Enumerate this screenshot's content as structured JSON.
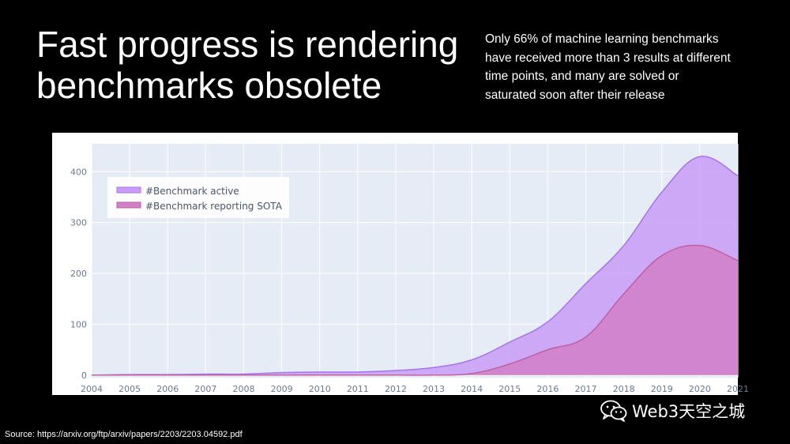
{
  "slide": {
    "title_lines": [
      "Fast progress is rendering",
      "benchmarks obsolete"
    ],
    "subtitle_lines": [
      "Only 66% of machine learning benchmarks",
      "have received more than 3 results at different",
      "time points, and many are solved or",
      "saturated soon after their release"
    ],
    "source": "Source: https://arxiv.org/ftp/arxiv/papers/2203/2203.04592.pdf",
    "watermark": "Web3天空之城"
  },
  "colors": {
    "plot_bg": "#e5ecf6",
    "active_fill": "#c89cf7",
    "active_line": "#a874ee",
    "sota_fill": "#d17fc8",
    "sota_line": "#c0609f",
    "grid": "#ffffff",
    "tick": "#6b7a8f"
  },
  "chart_data": {
    "type": "area",
    "title": "",
    "xlabel": "",
    "ylabel": "",
    "xlim": [
      2004,
      2021
    ],
    "ylim": [
      -5,
      455
    ],
    "x_ticks": [
      2004,
      2005,
      2006,
      2007,
      2008,
      2009,
      2010,
      2011,
      2012,
      2013,
      2014,
      2015,
      2016,
      2017,
      2018,
      2019,
      2020,
      2021
    ],
    "y_ticks": [
      0,
      100,
      200,
      300,
      400
    ],
    "grid": true,
    "legend_position": "top-left",
    "x": [
      2004,
      2005,
      2006,
      2007,
      2008,
      2009,
      2010,
      2011,
      2012,
      2013,
      2014,
      2015,
      2016,
      2017,
      2018,
      2019,
      2020,
      2021
    ],
    "series": [
      {
        "name": "#Benchmark active",
        "values": [
          0,
          1,
          1,
          2,
          2,
          5,
          6,
          6,
          9,
          15,
          30,
          65,
          105,
          180,
          255,
          360,
          430,
          392
        ]
      },
      {
        "name": "#Benchmark reporting SOTA",
        "values": [
          0,
          0,
          0,
          0,
          0,
          0,
          0,
          0,
          0,
          0,
          3,
          22,
          50,
          75,
          160,
          235,
          255,
          225
        ]
      }
    ]
  }
}
